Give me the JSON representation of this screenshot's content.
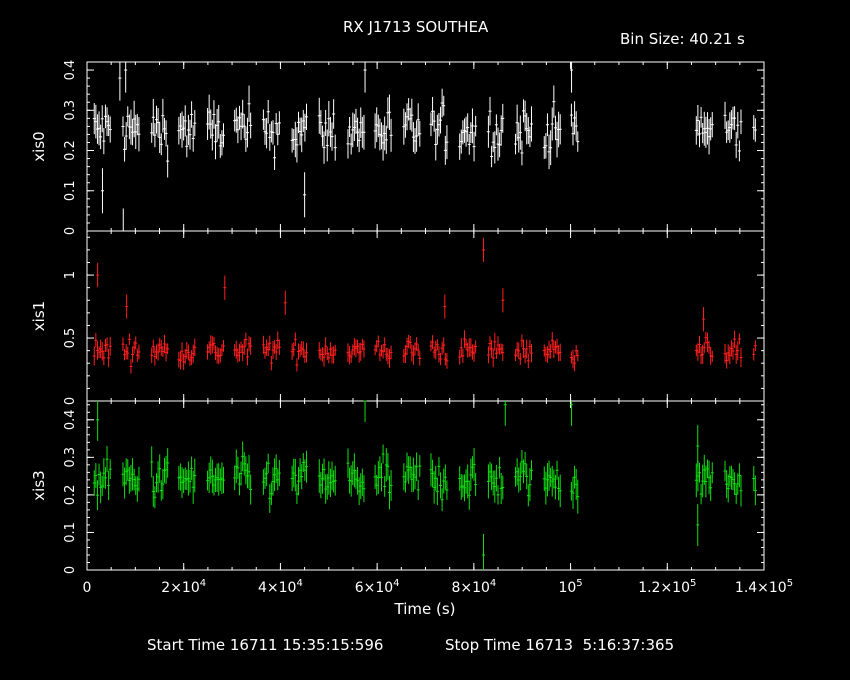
{
  "title": "RX J1713 SOUTHEA",
  "bin_size": "Bin Size: 40.21 s",
  "footer": {
    "start": "Start Time 16711 15:35:15:596",
    "stop": "Stop Time 16713  5:16:37:365"
  },
  "chart_data": [
    {
      "type": "scatter",
      "name": "xis0",
      "ylabel": "xis0",
      "color": "#ffffff",
      "ylim": [
        0,
        0.42
      ],
      "yticks": [
        "0",
        "0.1",
        "0.2",
        "0.3",
        "0.4"
      ],
      "ytick_values": [
        0,
        0.1,
        0.2,
        0.3,
        0.4
      ],
      "baseline": 0.25,
      "spread": 0.04,
      "err": 0.035,
      "spikes": [
        [
          7500,
          0.0
        ],
        [
          8000,
          0.4
        ],
        [
          6800,
          0.38
        ],
        [
          57500,
          0.4
        ],
        [
          100200,
          0.4
        ],
        [
          3200,
          0.1
        ],
        [
          45000,
          0.09
        ]
      ]
    },
    {
      "type": "scatter",
      "name": "xis1",
      "ylabel": "xis1",
      "color": "#ff2020",
      "ylim": [
        0,
        1.35
      ],
      "yticks": [
        "0",
        "0.5",
        "1"
      ],
      "ytick_values": [
        0,
        0.5,
        1
      ],
      "baseline": 0.4,
      "spread": 0.06,
      "err": 0.06,
      "spikes": [
        [
          2200,
          1.0
        ],
        [
          8200,
          0.75
        ],
        [
          28500,
          0.9
        ],
        [
          41000,
          0.78
        ],
        [
          82000,
          1.2
        ],
        [
          86000,
          0.8
        ],
        [
          74000,
          0.75
        ],
        [
          127500,
          0.65
        ]
      ]
    },
    {
      "type": "scatter",
      "name": "xis3",
      "ylabel": "xis3",
      "color": "#10e010",
      "ylim": [
        0,
        0.45
      ],
      "yticks": [
        "0",
        "0.1",
        "0.2",
        "0.3",
        "0.4"
      ],
      "ytick_values": [
        0,
        0.1,
        0.2,
        0.3,
        0.4
      ],
      "baseline": 0.24,
      "spread": 0.035,
      "err": 0.035,
      "spikes": [
        [
          2200,
          0.4
        ],
        [
          57500,
          0.45
        ],
        [
          86500,
          0.44
        ],
        [
          100200,
          0.44
        ],
        [
          82000,
          0.04
        ],
        [
          126300,
          0.12
        ],
        [
          126300,
          0.33
        ]
      ]
    }
  ],
  "x_axis": {
    "label": "Time (s)",
    "xlim": [
      0,
      140000
    ],
    "ticks": [
      {
        "value": 0,
        "mant": "0",
        "exp": ""
      },
      {
        "value": 20000,
        "mant": "2×10",
        "exp": "4"
      },
      {
        "value": 40000,
        "mant": "4×10",
        "exp": "4"
      },
      {
        "value": 60000,
        "mant": "6×10",
        "exp": "4"
      },
      {
        "value": 80000,
        "mant": "8×10",
        "exp": "4"
      },
      {
        "value": 100000,
        "mant": "10",
        "exp": "5"
      },
      {
        "value": 120000,
        "mant": "1.2×10",
        "exp": "5"
      },
      {
        "value": 140000,
        "mant": "1.4×10",
        "exp": "5"
      }
    ]
  },
  "data_segments": [
    [
      1500,
      101500
    ],
    [
      126000,
      138500
    ]
  ]
}
